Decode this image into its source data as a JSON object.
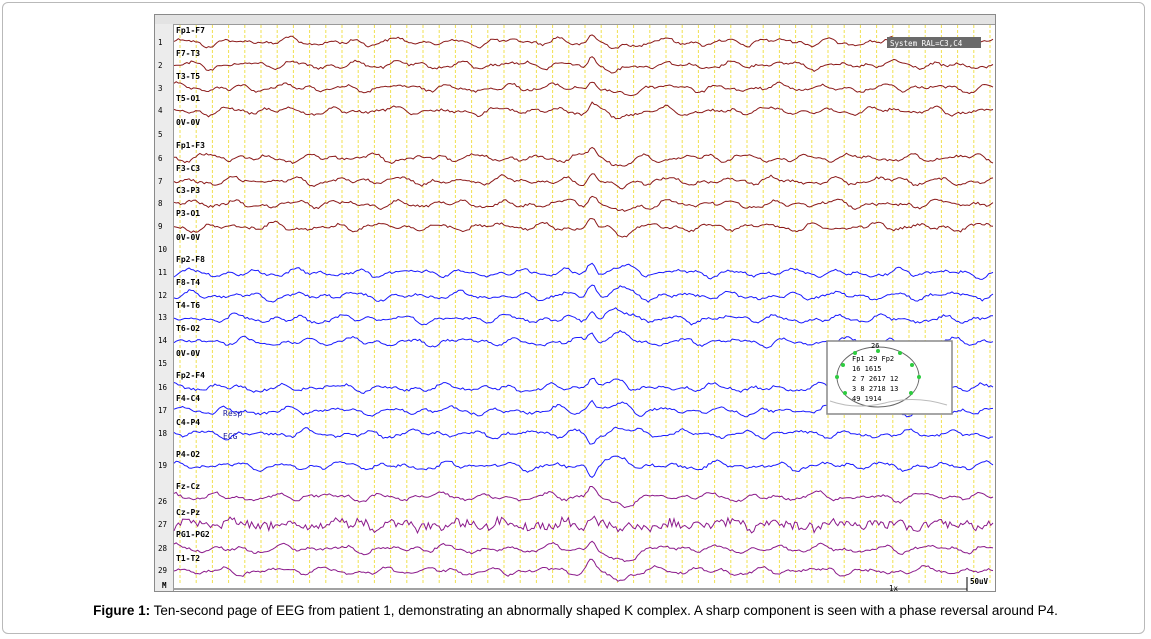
{
  "caption": {
    "label": "Figure 1:",
    "text": " Ten-second page of EEG from patient 1, demonstrating an abnormally shaped K complex. A sharp component is seen with a phase reversal around P4."
  },
  "colors": {
    "left_hemisphere": "#8b1a1a",
    "right_hemisphere": "#1a1aff",
    "midline": "#8b1a8b",
    "gridlines": "#f0e050",
    "annotation": "#1a1a9a"
  },
  "chart_data": {
    "type": "line",
    "title": "",
    "montage_label": "System RAL=C3,C4",
    "scale_label": "50uV",
    "speed_label": "1x",
    "marker_row_label": "M",
    "channels": [
      {
        "name": "Fp1-F7",
        "number": "1",
        "group": "left"
      },
      {
        "name": "F7-T3",
        "number": "2",
        "group": "left"
      },
      {
        "name": "T3-T5",
        "number": "3",
        "group": "left"
      },
      {
        "name": "T5-O1",
        "number": "4",
        "group": "left"
      },
      {
        "name": "0V-0V",
        "number": "5",
        "group": "empty"
      },
      {
        "name": "Fp1-F3",
        "number": "6",
        "group": "left"
      },
      {
        "name": "F3-C3",
        "number": "7",
        "group": "left"
      },
      {
        "name": "C3-P3",
        "number": "8",
        "group": "left"
      },
      {
        "name": "P3-O1",
        "number": "9",
        "group": "left"
      },
      {
        "name": "0V-0V",
        "number": "10",
        "group": "empty"
      },
      {
        "name": "Fp2-F8",
        "number": "11",
        "group": "right"
      },
      {
        "name": "F8-T4",
        "number": "12",
        "group": "right"
      },
      {
        "name": "T4-T6",
        "number": "13",
        "group": "right"
      },
      {
        "name": "T6-O2",
        "number": "14",
        "group": "right"
      },
      {
        "name": "0V-0V",
        "number": "15",
        "group": "empty"
      },
      {
        "name": "Fp2-F4",
        "number": "16",
        "group": "right"
      },
      {
        "name": "F4-C4",
        "number": "17",
        "group": "right"
      },
      {
        "name": "C4-P4",
        "number": "18",
        "group": "right"
      },
      {
        "name": "P4-O2",
        "number": "19",
        "group": "right"
      },
      {
        "name": "Fz-Cz",
        "number": "26",
        "group": "mid"
      },
      {
        "name": "Cz-Pz",
        "number": "27",
        "group": "mid"
      },
      {
        "name": "PG1-PG2",
        "number": "28",
        "group": "mid"
      },
      {
        "name": "T1-T2",
        "number": "29",
        "group": "mid"
      }
    ],
    "annotations": [
      "Resp",
      "ECG"
    ],
    "head_map": {
      "top": "26",
      "rows": [
        "Fp1  29  Fp2",
        "16    1615",
        "2  7  2617  12",
        "3  8  2718  13",
        "49      1914"
      ]
    },
    "x_unit": "seconds",
    "xlim": [
      0,
      10
    ],
    "event_time": 5.1,
    "event": "K complex with sharp component, phase reversal around P4"
  }
}
